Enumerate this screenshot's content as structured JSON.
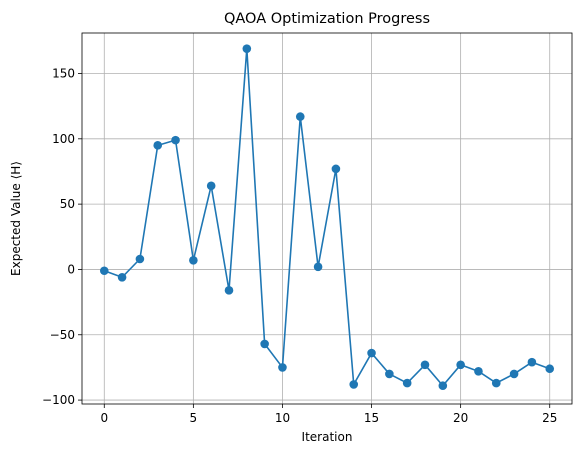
{
  "chart_data": {
    "type": "line",
    "title": "QAOA Optimization Progress",
    "xlabel": "Iteration",
    "ylabel": "Expected Value ⟨H⟩",
    "xlim": [
      -1.25,
      26.25
    ],
    "ylim": [
      -103,
      181
    ],
    "xticks": [
      0,
      5,
      10,
      15,
      20,
      25
    ],
    "yticks": [
      -100,
      -50,
      0,
      50,
      100,
      150
    ],
    "grid": true,
    "markers": true,
    "series": [
      {
        "color": "#1f77b4",
        "x": [
          0,
          1,
          2,
          3,
          4,
          5,
          6,
          7,
          8,
          9,
          10,
          11,
          12,
          13,
          14,
          15,
          16,
          17,
          18,
          19,
          20,
          21,
          22,
          23,
          24,
          25
        ],
        "y": [
          -1,
          -6,
          8,
          95,
          99,
          7,
          64,
          -16,
          169,
          -57,
          -75,
          117,
          2,
          77,
          -88,
          -64,
          -80,
          -87,
          -73,
          -89,
          -73,
          -78,
          -87,
          -80,
          -71,
          -76
        ]
      }
    ]
  }
}
